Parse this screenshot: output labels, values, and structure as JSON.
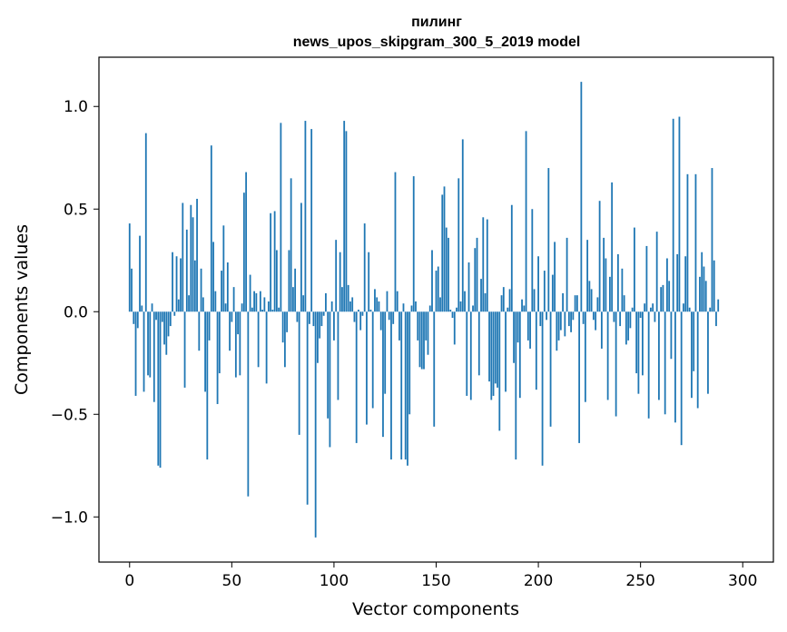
{
  "chart_data": {
    "type": "bar",
    "title": "пилинг",
    "subtitle": "news_upos_skipgram_300_5_2019 model",
    "xlabel": "Vector components",
    "ylabel": "Components values",
    "xlim": [
      -15,
      315
    ],
    "ylim": [
      -1.22,
      1.24
    ],
    "xticks": [
      0,
      50,
      100,
      150,
      200,
      250,
      300
    ],
    "yticks": [
      -1.0,
      -0.5,
      0.0,
      0.5,
      1.0
    ],
    "xtick_labels": [
      "0",
      "50",
      "100",
      "150",
      "200",
      "250",
      "300"
    ],
    "ytick_labels": [
      "−1.0",
      "−0.5",
      "0.0",
      "0.5",
      "1.0"
    ],
    "bar_color": "#1f77b4",
    "values": [
      0.43,
      0.21,
      -0.06,
      -0.41,
      -0.08,
      0.37,
      0.03,
      -0.39,
      0.87,
      -0.31,
      -0.32,
      0.04,
      -0.44,
      -0.04,
      -0.75,
      -0.76,
      -0.05,
      -0.16,
      -0.21,
      -0.12,
      -0.07,
      0.29,
      -0.02,
      0.27,
      0.06,
      0.26,
      0.53,
      -0.37,
      0.4,
      0.08,
      0.52,
      0.46,
      0.25,
      0.55,
      -0.19,
      0.21,
      0.07,
      -0.39,
      -0.72,
      -0.14,
      0.81,
      0.34,
      0.1,
      -0.45,
      -0.3,
      0.2,
      0.42,
      0.04,
      0.24,
      -0.19,
      -0.05,
      0.12,
      -0.32,
      -0.11,
      -0.31,
      0.04,
      0.58,
      0.68,
      -0.9,
      0.18,
      0.02,
      0.1,
      0.09,
      -0.27,
      0.1,
      0.01,
      0.07,
      -0.35,
      0.05,
      0.48,
      0.01,
      0.49,
      0.3,
      0.02,
      0.92,
      -0.15,
      -0.27,
      -0.1,
      0.3,
      0.65,
      0.12,
      0.21,
      -0.05,
      -0.6,
      0.53,
      0.08,
      0.93,
      -0.94,
      -0.06,
      0.89,
      -0.07,
      -1.1,
      -0.25,
      -0.13,
      -0.07,
      -0.02,
      0.09,
      -0.52,
      -0.66,
      0.05,
      -0.14,
      0.35,
      -0.43,
      0.29,
      0.12,
      0.93,
      0.88,
      0.13,
      0.05,
      0.07,
      -0.05,
      -0.64,
      0.01,
      -0.09,
      -0.02,
      0.43,
      -0.55,
      0.29,
      0.01,
      -0.47,
      0.11,
      0.07,
      0.05,
      -0.09,
      -0.61,
      -0.4,
      0.1,
      -0.04,
      -0.72,
      -0.06,
      0.68,
      0.1,
      -0.14,
      -0.72,
      0.04,
      -0.72,
      -0.75,
      -0.5,
      0.03,
      0.66,
      0.05,
      -0.14,
      -0.27,
      -0.28,
      -0.28,
      -0.14,
      -0.21,
      0.03,
      0.3,
      -0.56,
      0.2,
      0.22,
      0.07,
      0.57,
      0.61,
      0.41,
      0.36,
      0.01,
      -0.03,
      -0.16,
      0.02,
      0.65,
      0.05,
      0.84,
      0.1,
      -0.41,
      0.24,
      -0.43,
      0.03,
      0.31,
      0.36,
      -0.31,
      0.16,
      0.46,
      0.09,
      0.45,
      -0.34,
      -0.43,
      -0.41,
      -0.35,
      -0.37,
      -0.58,
      0.08,
      0.12,
      -0.39,
      0.02,
      0.11,
      0.52,
      -0.25,
      -0.72,
      -0.15,
      -0.42,
      0.06,
      0.03,
      0.88,
      -0.14,
      -0.18,
      0.5,
      0.11,
      -0.38,
      0.27,
      -0.07,
      -0.75,
      0.2,
      -0.04,
      0.7,
      -0.56,
      0.18,
      0.34,
      -0.19,
      -0.14,
      -0.09,
      0.09,
      -0.12,
      0.36,
      -0.07,
      -0.1,
      -0.04,
      0.08,
      0.08,
      -0.64,
      1.12,
      -0.06,
      -0.44,
      0.35,
      0.15,
      0.11,
      -0.04,
      -0.09,
      0.07,
      0.54,
      -0.18,
      0.36,
      0.26,
      -0.43,
      0.17,
      0.63,
      -0.05,
      -0.51,
      0.28,
      -0.07,
      0.21,
      0.08,
      -0.16,
      -0.14,
      -0.08,
      0.02,
      0.41,
      -0.3,
      -0.4,
      -0.03,
      -0.31,
      0.04,
      0.32,
      -0.52,
      0.02,
      0.04,
      -0.05,
      0.39,
      -0.43,
      0.12,
      0.13,
      -0.5,
      0.26,
      0.15,
      -0.23,
      0.94,
      -0.54,
      0.28,
      0.95,
      -0.65,
      0.04,
      0.27,
      0.67,
      0.02,
      -0.42,
      -0.29,
      0.67,
      -0.47,
      0.17,
      0.29,
      0.22,
      0.15,
      -0.4,
      0.02,
      0.7,
      0.25,
      -0.07,
      0.06
    ]
  }
}
